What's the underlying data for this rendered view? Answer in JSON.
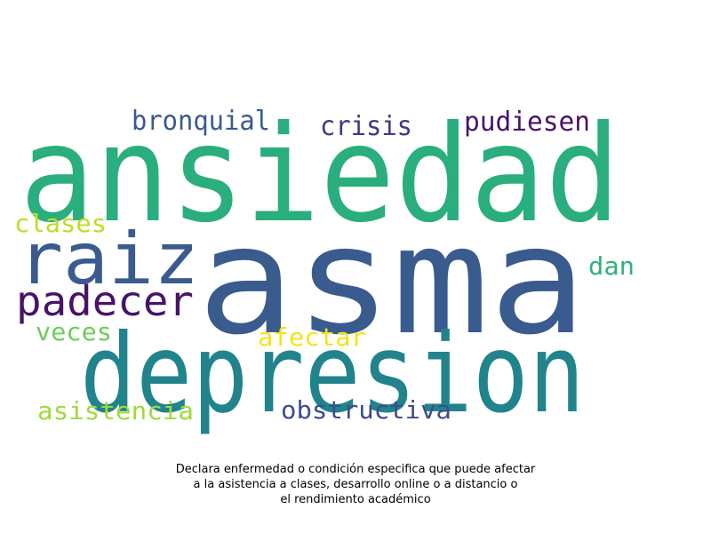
{
  "wordcloud": {
    "words": [
      {
        "text": "ansiedad",
        "color": "#2aae7e"
      },
      {
        "text": "asma",
        "color": "#3a5b8e"
      },
      {
        "text": "depresion",
        "color": "#21838c"
      },
      {
        "text": "raiz",
        "color": "#3a5b8e"
      },
      {
        "text": "padecer",
        "color": "#471466"
      },
      {
        "text": "bronquial",
        "color": "#3a5b8e"
      },
      {
        "text": "crisis",
        "color": "#453781"
      },
      {
        "text": "pudiesen",
        "color": "#471466"
      },
      {
        "text": "clases",
        "color": "#bddf26"
      },
      {
        "text": "dan",
        "color": "#2db27d"
      },
      {
        "text": "veces",
        "color": "#6ccd5a"
      },
      {
        "text": "afectar",
        "color": "#f4e31e"
      },
      {
        "text": "asistencia",
        "color": "#a0da39"
      },
      {
        "text": "obstructiva",
        "color": "#3e4c8a"
      }
    ]
  },
  "caption": {
    "line1": "Declara enfermedad o condición especifica que puede afectar",
    "line2": "a la asistencia a clases, desarrollo online o a distancio o",
    "line3": "el rendimiento académico"
  }
}
